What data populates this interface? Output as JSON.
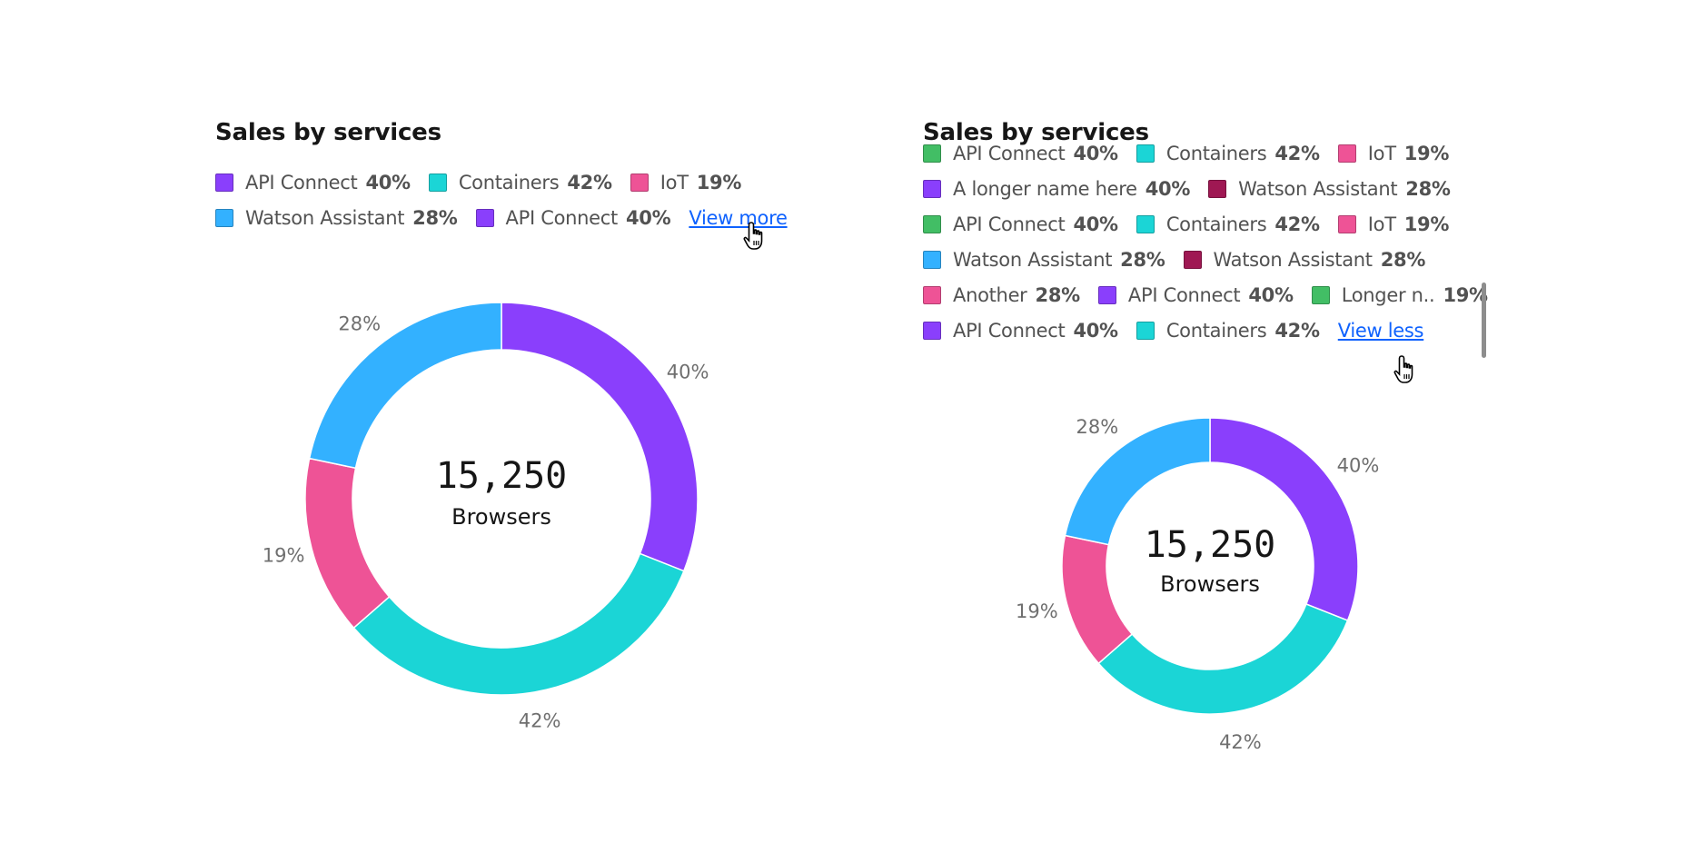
{
  "charts": [
    {
      "title": "Sales by services",
      "legend_rows": [
        [
          {
            "label": "API Connect",
            "value": "40%",
            "color": "#8a3ffc"
          },
          {
            "label": "Containers",
            "value": "42%",
            "color": "#1bd5d6"
          },
          {
            "label": "IoT",
            "value": "19%",
            "color": "#ee5396"
          }
        ],
        [
          {
            "label": "Watson Assistant",
            "value": "28%",
            "color": "#33b1ff"
          },
          {
            "label": "API Connect",
            "value": "40%",
            "color": "#8a3ffc"
          }
        ]
      ],
      "legend_link": "View more",
      "center_value": "15,250",
      "center_label": "Browsers"
    },
    {
      "title": "Sales by services",
      "legend_rows": [
        [
          {
            "label": "API Connect",
            "value": "40%",
            "color": "#42be65"
          },
          {
            "label": "Containers",
            "value": "42%",
            "color": "#1bd5d6"
          },
          {
            "label": "IoT",
            "value": "19%",
            "color": "#ee5396"
          }
        ],
        [
          {
            "label": "A longer name here",
            "value": "40%",
            "color": "#8a3ffc"
          },
          {
            "label": "Watson Assistant",
            "value": "28%",
            "color": "#9f1853"
          }
        ],
        [
          {
            "label": "API Connect",
            "value": "40%",
            "color": "#42be65"
          },
          {
            "label": "Containers",
            "value": "42%",
            "color": "#1bd5d6"
          },
          {
            "label": "IoT",
            "value": "19%",
            "color": "#ee5396"
          }
        ],
        [
          {
            "label": "Watson Assistant",
            "value": "28%",
            "color": "#33b1ff"
          },
          {
            "label": "Watson Assistant",
            "value": "28%",
            "color": "#9f1853"
          }
        ],
        [
          {
            "label": "Another",
            "value": "28%",
            "color": "#ee5396"
          },
          {
            "label": "API Connect",
            "value": "40%",
            "color": "#8a3ffc"
          },
          {
            "label": "Longer n..",
            "value": "19%",
            "color": "#42be65"
          }
        ],
        [
          {
            "label": "API Connect",
            "value": "40%",
            "color": "#8a3ffc"
          },
          {
            "label": "Containers",
            "value": "42%",
            "color": "#1bd5d6"
          }
        ]
      ],
      "legend_link": "View less",
      "center_value": "15,250",
      "center_label": "Browsers"
    }
  ],
  "chart_data": [
    {
      "type": "pie",
      "title": "Sales by services",
      "labels": [
        "API Connect",
        "Containers",
        "IoT",
        "Watson Assistant"
      ],
      "values": [
        40,
        42,
        19,
        28
      ],
      "slice_labels": [
        "40%",
        "42%",
        "19%",
        "28%"
      ],
      "colors": [
        "#8a3ffc",
        "#1bd5d6",
        "#ee5396",
        "#33b1ff"
      ],
      "legend": "top-left"
    },
    {
      "type": "pie",
      "title": "Sales by services",
      "labels": [
        "API Connect",
        "Containers",
        "IoT",
        "Watson Assistant"
      ],
      "values": [
        40,
        42,
        19,
        28
      ],
      "slice_labels": [
        "40%",
        "42%",
        "19%",
        "28%"
      ],
      "colors": [
        "#8a3ffc",
        "#1bd5d6",
        "#ee5396",
        "#33b1ff"
      ],
      "legend": "top-left"
    }
  ]
}
